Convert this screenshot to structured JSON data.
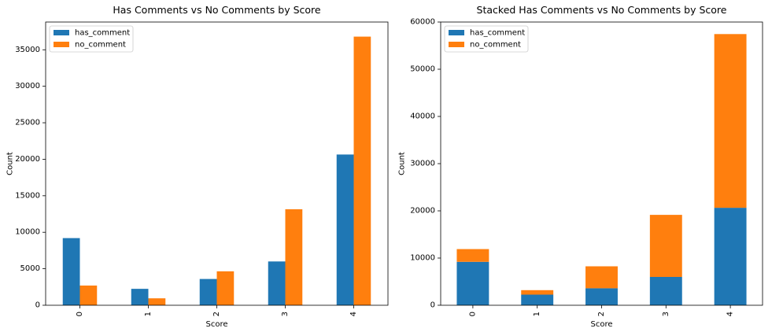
{
  "colors": {
    "has_comment": "#1f77b4",
    "no_comment": "#ff7f0e"
  },
  "chart_data": [
    {
      "type": "bar",
      "mode": "grouped",
      "title": "Has Comments vs No Comments by Score",
      "xlabel": "Score",
      "ylabel": "Count",
      "categories": [
        "0",
        "1",
        "2",
        "3",
        "4"
      ],
      "series": [
        {
          "name": "has_comment",
          "values": [
            9200,
            2250,
            3600,
            6000,
            20650
          ]
        },
        {
          "name": "no_comment",
          "values": [
            2700,
            950,
            4650,
            13150,
            36800
          ]
        }
      ],
      "ylim": [
        0,
        38800
      ],
      "yticks": [
        0,
        5000,
        10000,
        15000,
        20000,
        25000,
        30000,
        35000
      ],
      "legend": "top-left",
      "grid": false
    },
    {
      "type": "bar",
      "mode": "stacked",
      "title": "Stacked Has Comments vs No Comments by Score",
      "xlabel": "Score",
      "ylabel": "Count",
      "categories": [
        "0",
        "1",
        "2",
        "3",
        "4"
      ],
      "series": [
        {
          "name": "has_comment",
          "values": [
            9200,
            2250,
            3600,
            6000,
            20650
          ]
        },
        {
          "name": "no_comment",
          "values": [
            2700,
            950,
            4650,
            13150,
            36800
          ]
        }
      ],
      "ylim": [
        0,
        60000
      ],
      "yticks": [
        0,
        10000,
        20000,
        30000,
        40000,
        50000,
        60000
      ],
      "legend": "top-left",
      "grid": false
    }
  ]
}
